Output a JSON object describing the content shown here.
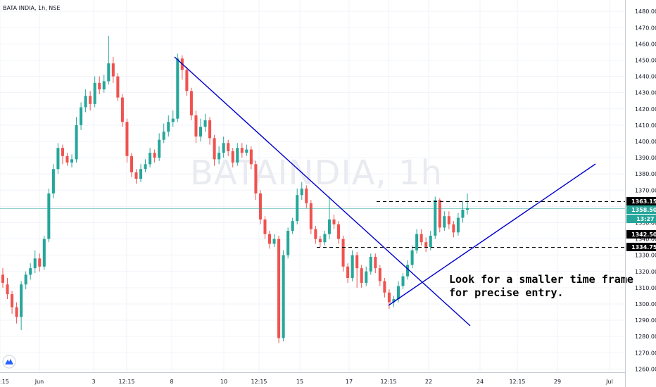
{
  "header": {
    "title": "BATA INDIA, 1h, NSE"
  },
  "watermark": "BATAINDIA, 1h",
  "note": {
    "line1": "Look for a smaller time frame",
    "line2": "for precise entry."
  },
  "colors": {
    "up": "#26a69a",
    "down": "#ef5350",
    "trendline": "#0000cc",
    "dashed": "#000000",
    "last_price_line": "#26a69a",
    "grid": "#f0f3fa"
  },
  "price_labels": {
    "resistance": "1363.15",
    "last": "1358.50",
    "countdown": "13:27",
    "level_a": "1342.50",
    "support": "1334.75"
  },
  "icons": {
    "logo": "tradingview-logo-icon"
  },
  "chart_data": {
    "type": "candlestick",
    "title": "BATA INDIA, 1h, NSE",
    "ylim": [
      1258,
      1487
    ],
    "y_ticks": [
      1260,
      1270,
      1280,
      1290,
      1300,
      1310,
      1320,
      1330,
      1340,
      1350,
      1360,
      1370,
      1380,
      1390,
      1400,
      1410,
      1420,
      1430,
      1440,
      1450,
      1460,
      1470,
      1480
    ],
    "x_tick_labels": [
      ":15",
      "Jun",
      "3",
      "12:15",
      "8",
      "10",
      "12:15",
      "15",
      "17",
      "12:15",
      "22",
      "24",
      "12:15",
      "29",
      "Jul"
    ],
    "candles": [
      [
        1318,
        1313,
        1322,
        1310
      ],
      [
        1312,
        1306,
        1316,
        1303
      ],
      [
        1306,
        1298,
        1308,
        1294
      ],
      [
        1298,
        1292,
        1301,
        1288
      ],
      [
        1292,
        1312,
        1314,
        1284
      ],
      [
        1312,
        1318,
        1320,
        1309
      ],
      [
        1318,
        1322,
        1325,
        1315
      ],
      [
        1322,
        1328,
        1333,
        1319
      ],
      [
        1328,
        1323,
        1331,
        1320
      ],
      [
        1323,
        1340,
        1342,
        1321
      ],
      [
        1340,
        1368,
        1371,
        1338
      ],
      [
        1368,
        1383,
        1386,
        1365
      ],
      [
        1383,
        1396,
        1399,
        1380
      ],
      [
        1396,
        1391,
        1398,
        1386
      ],
      [
        1391,
        1387,
        1393,
        1385
      ],
      [
        1387,
        1389,
        1392,
        1384
      ],
      [
        1389,
        1410,
        1415,
        1387
      ],
      [
        1410,
        1421,
        1424,
        1407
      ],
      [
        1421,
        1428,
        1432,
        1418
      ],
      [
        1428,
        1423,
        1431,
        1419
      ],
      [
        1423,
        1436,
        1440,
        1421
      ],
      [
        1436,
        1432,
        1440,
        1429
      ],
      [
        1432,
        1437,
        1441,
        1430
      ],
      [
        1437,
        1448,
        1465,
        1435
      ],
      [
        1448,
        1440,
        1452,
        1436
      ],
      [
        1440,
        1427,
        1442,
        1425
      ],
      [
        1427,
        1412,
        1429,
        1409
      ],
      [
        1412,
        1391,
        1414,
        1387
      ],
      [
        1391,
        1381,
        1393,
        1378
      ],
      [
        1381,
        1377,
        1383,
        1374
      ],
      [
        1377,
        1383,
        1386,
        1375
      ],
      [
        1383,
        1386,
        1389,
        1381
      ],
      [
        1386,
        1393,
        1396,
        1384
      ],
      [
        1393,
        1390,
        1395,
        1387
      ],
      [
        1390,
        1401,
        1405,
        1388
      ],
      [
        1401,
        1406,
        1411,
        1399
      ],
      [
        1406,
        1412,
        1416,
        1403
      ],
      [
        1412,
        1414,
        1419,
        1409
      ],
      [
        1414,
        1451,
        1454,
        1412
      ],
      [
        1451,
        1444,
        1453,
        1438
      ],
      [
        1444,
        1431,
        1446,
        1428
      ],
      [
        1431,
        1416,
        1433,
        1413
      ],
      [
        1416,
        1403,
        1419,
        1399
      ],
      [
        1403,
        1409,
        1414,
        1400
      ],
      [
        1409,
        1413,
        1417,
        1406
      ],
      [
        1413,
        1402,
        1415,
        1398
      ],
      [
        1402,
        1389,
        1404,
        1385
      ],
      [
        1389,
        1393,
        1397,
        1386
      ],
      [
        1393,
        1399,
        1403,
        1390
      ],
      [
        1399,
        1394,
        1401,
        1391
      ],
      [
        1394,
        1387,
        1396,
        1384
      ],
      [
        1387,
        1396,
        1399,
        1385
      ],
      [
        1396,
        1393,
        1399,
        1390
      ],
      [
        1393,
        1395,
        1398,
        1391
      ],
      [
        1395,
        1386,
        1397,
        1383
      ],
      [
        1386,
        1368,
        1388,
        1364
      ],
      [
        1368,
        1352,
        1370,
        1349
      ],
      [
        1352,
        1343,
        1354,
        1340
      ],
      [
        1343,
        1337,
        1345,
        1334
      ],
      [
        1337,
        1340,
        1343,
        1335
      ],
      [
        1340,
        1279,
        1342,
        1276
      ],
      [
        1279,
        1330,
        1333,
        1277
      ],
      [
        1330,
        1345,
        1347,
        1328
      ],
      [
        1345,
        1351,
        1353,
        1343
      ],
      [
        1351,
        1367,
        1371,
        1349
      ],
      [
        1367,
        1371,
        1375,
        1364
      ],
      [
        1371,
        1362,
        1373,
        1359
      ],
      [
        1362,
        1346,
        1364,
        1343
      ],
      [
        1346,
        1340,
        1348,
        1337
      ],
      [
        1340,
        1338,
        1342,
        1335
      ],
      [
        1338,
        1343,
        1345,
        1336
      ],
      [
        1343,
        1352,
        1366,
        1340
      ],
      [
        1352,
        1349,
        1355,
        1346
      ],
      [
        1349,
        1340,
        1351,
        1337
      ],
      [
        1340,
        1323,
        1342,
        1320
      ],
      [
        1323,
        1316,
        1325,
        1313
      ],
      [
        1316,
        1330,
        1333,
        1314
      ],
      [
        1330,
        1322,
        1332,
        1310
      ],
      [
        1322,
        1313,
        1324,
        1310
      ],
      [
        1313,
        1320,
        1323,
        1311
      ],
      [
        1320,
        1329,
        1331,
        1318
      ],
      [
        1329,
        1322,
        1331,
        1319
      ],
      [
        1322,
        1314,
        1324,
        1311
      ],
      [
        1314,
        1307,
        1316,
        1304
      ],
      [
        1307,
        1301,
        1309,
        1297
      ],
      [
        1301,
        1303,
        1305,
        1298
      ],
      [
        1303,
        1311,
        1314,
        1301
      ],
      [
        1311,
        1317,
        1319,
        1309
      ],
      [
        1317,
        1324,
        1327,
        1315
      ],
      [
        1324,
        1333,
        1336,
        1322
      ],
      [
        1333,
        1343,
        1346,
        1331
      ],
      [
        1343,
        1338,
        1346,
        1336
      ],
      [
        1338,
        1335,
        1341,
        1332
      ],
      [
        1335,
        1342,
        1345,
        1333
      ],
      [
        1342,
        1364,
        1366,
        1340
      ],
      [
        1364,
        1347,
        1365,
        1344
      ],
      [
        1347,
        1354,
        1357,
        1345
      ],
      [
        1354,
        1349,
        1357,
        1346
      ],
      [
        1349,
        1344,
        1351,
        1341
      ],
      [
        1344,
        1353,
        1356,
        1342
      ],
      [
        1353,
        1358,
        1363,
        1350
      ],
      [
        1358,
        1359,
        1368,
        1355
      ]
    ]
  }
}
